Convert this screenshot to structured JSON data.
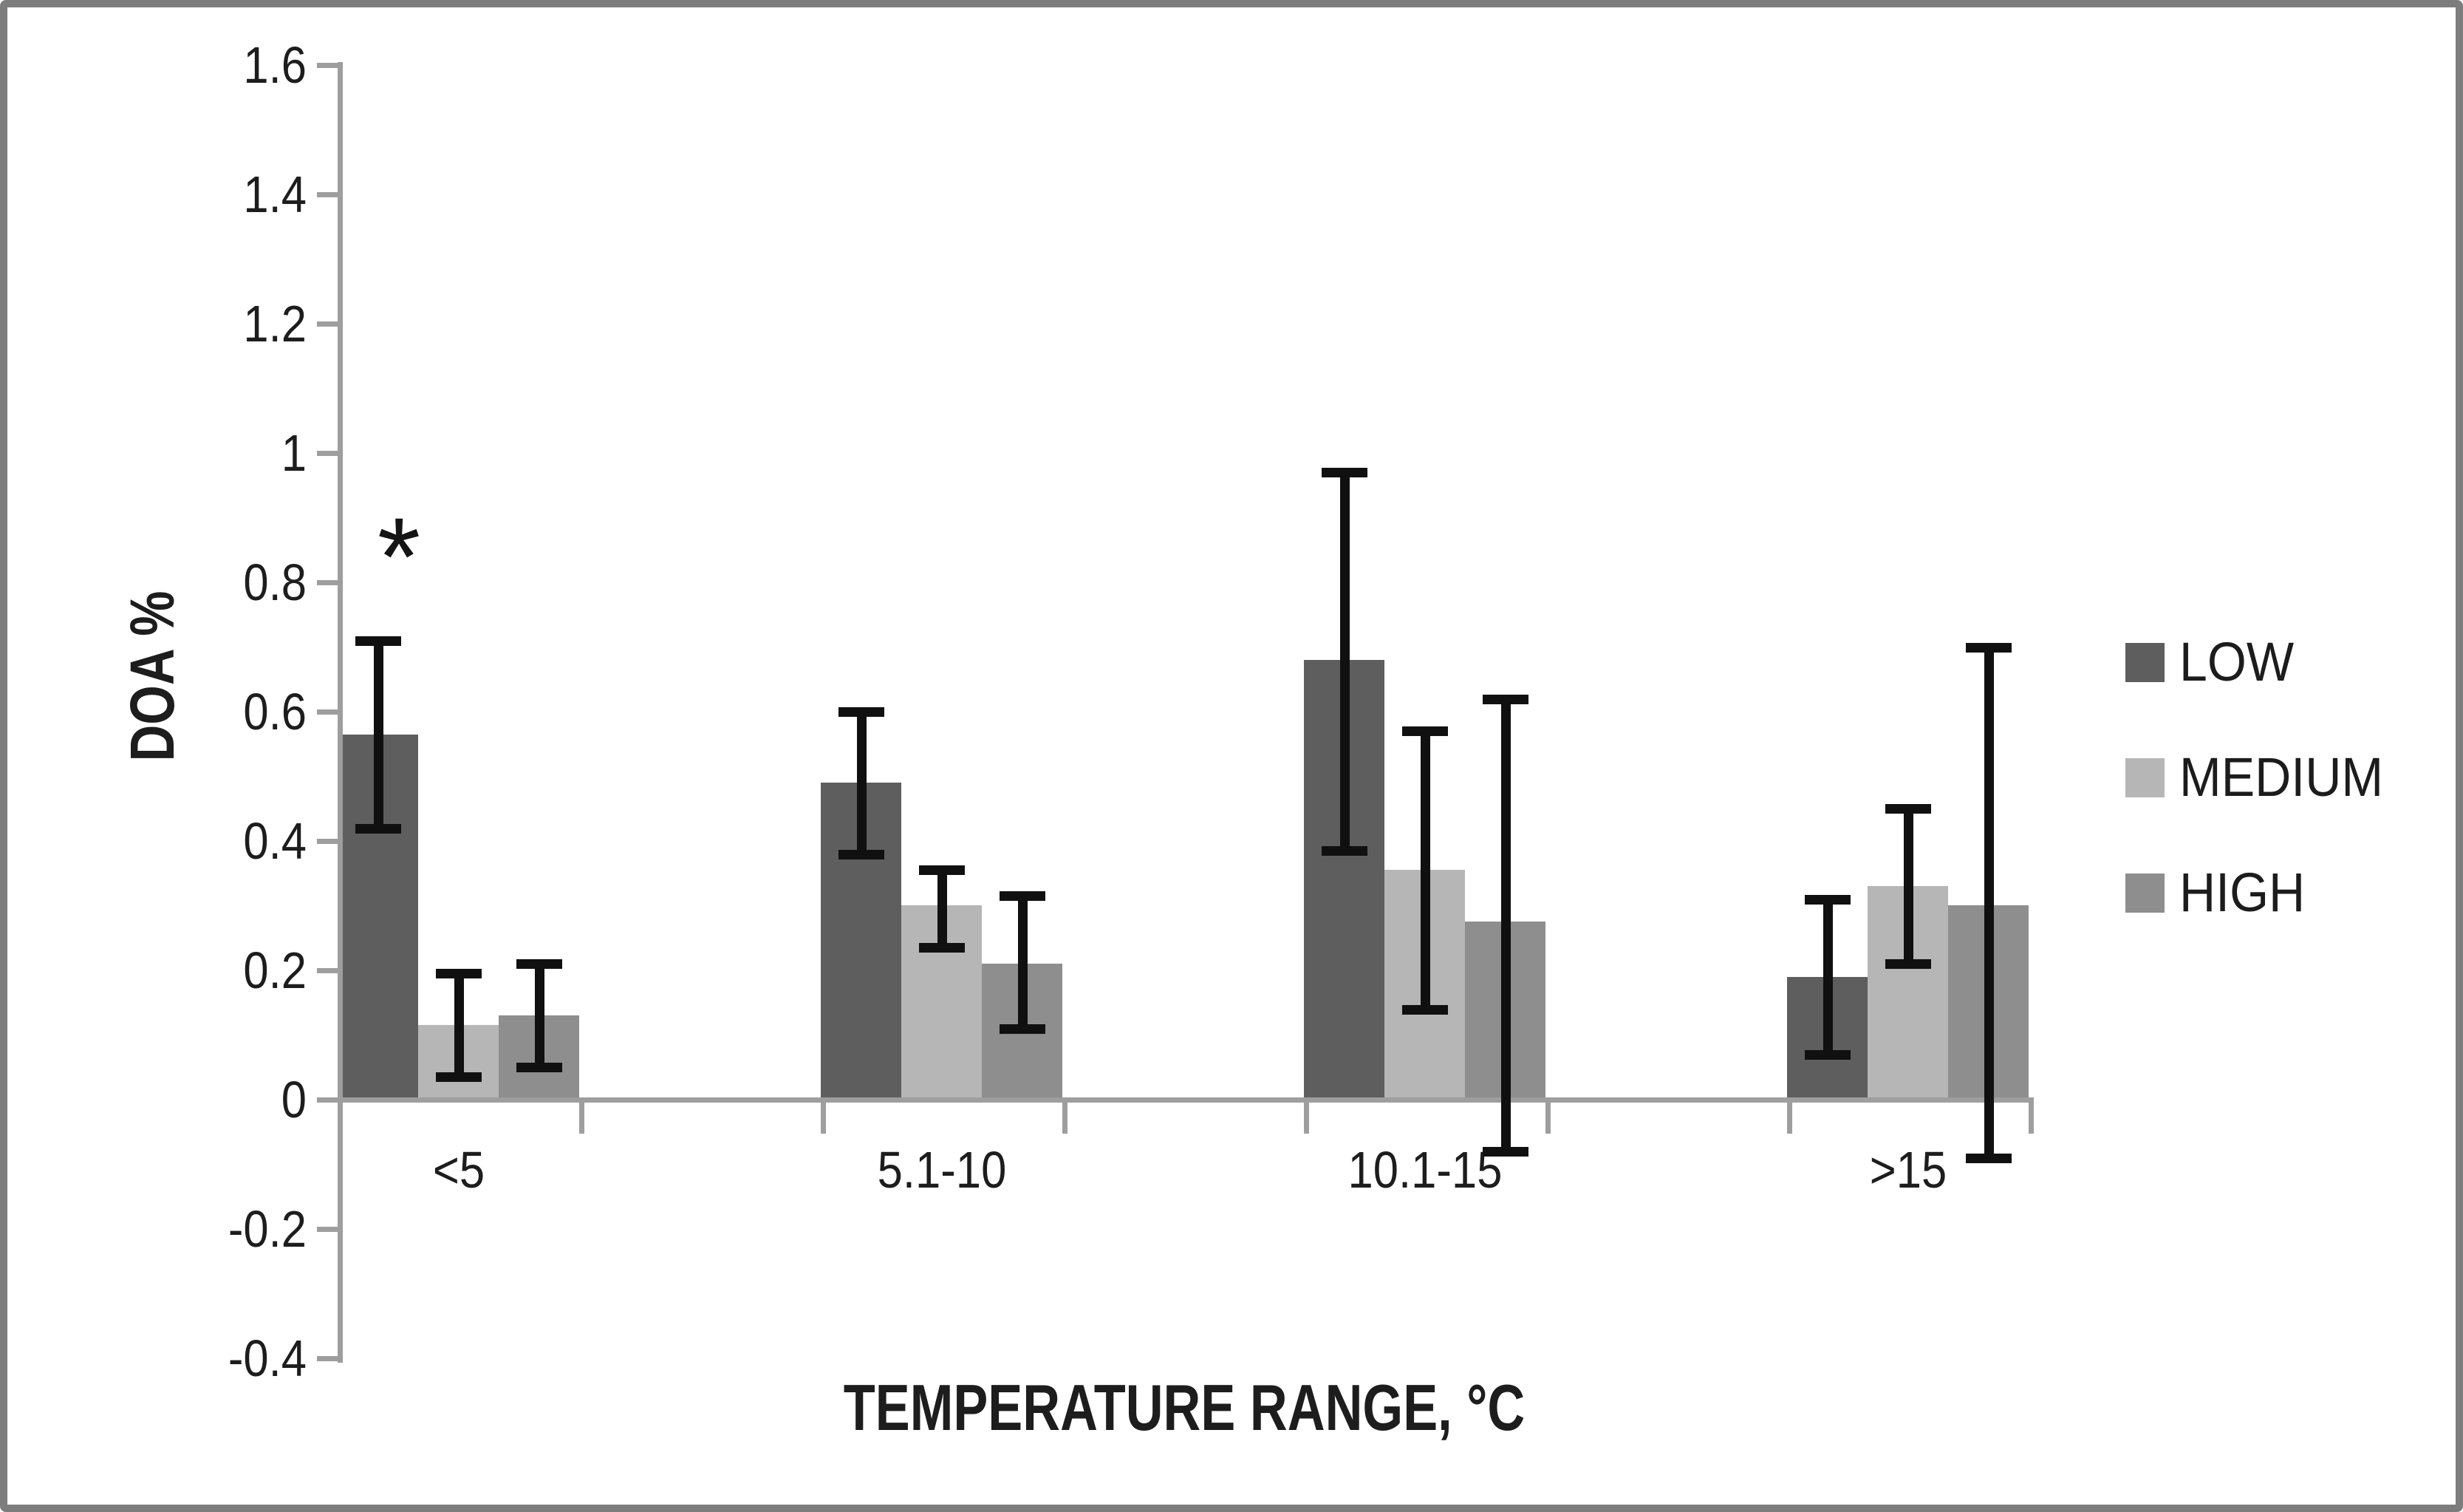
{
  "figure": {
    "y_axis_title": "DOA %",
    "x_axis_title": "TEMPERATURE RANGE, °C",
    "significance_marker": "*"
  },
  "chart_data": {
    "type": "bar",
    "title": "",
    "xlabel": "TEMPERATURE RANGE, °C",
    "ylabel": "DOA %",
    "categories": [
      "<5",
      "5.1-10",
      "10.1-15",
      ">15"
    ],
    "series": [
      {
        "name": "LOW",
        "color": "#5e5e5e",
        "values": [
          0.565,
          0.49,
          0.68,
          0.19
        ],
        "error_low": [
          0.42,
          0.38,
          0.385,
          0.07
        ],
        "error_high": [
          0.71,
          0.6,
          0.97,
          0.31
        ]
      },
      {
        "name": "MEDIUM",
        "color": "#b6b6b6",
        "values": [
          0.115,
          0.3,
          0.355,
          0.33
        ],
        "error_low": [
          0.035,
          0.235,
          0.14,
          0.21
        ],
        "error_high": [
          0.195,
          0.355,
          0.57,
          0.45
        ]
      },
      {
        "name": "HIGH",
        "color": "#8e8e8e",
        "values": [
          0.13,
          0.21,
          0.275,
          0.3
        ],
        "error_low": [
          0.05,
          0.11,
          -0.08,
          -0.09
        ],
        "error_high": [
          0.21,
          0.315,
          0.62,
          0.7
        ]
      }
    ],
    "ylim": [
      -0.4,
      1.6
    ],
    "ytick_step": 0.2,
    "ytick_labels": [
      "1.6",
      "1.4",
      "1.2",
      "1",
      "0.8",
      "0.6",
      "0.4",
      "0.2",
      "0",
      "-0.2",
      "-0.4"
    ],
    "grid": false,
    "legend_position": "right-middle",
    "error_bars": true,
    "annotations": [
      {
        "text": "*",
        "category": "<5",
        "series": "LOW",
        "value": 0.85
      }
    ]
  },
  "legend": {
    "items": [
      {
        "label": "LOW"
      },
      {
        "label": "MEDIUM"
      },
      {
        "label": "HIGH"
      }
    ]
  },
  "colors": {
    "frame_border": "#7d7d7d",
    "axis": "#9e9e9e",
    "error_bar": "#101010",
    "text": "#1d1d1d",
    "background": "#ffffff"
  }
}
